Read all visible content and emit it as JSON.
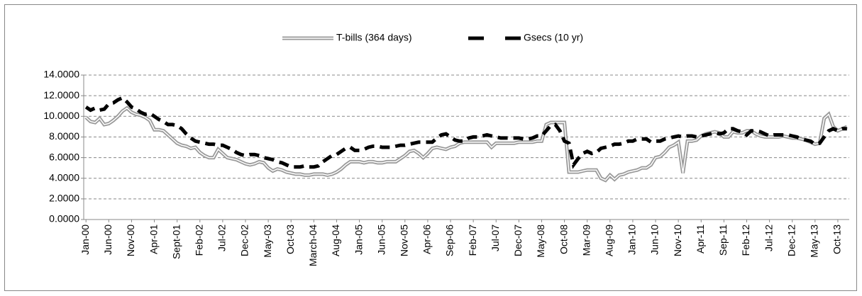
{
  "chart_data": {
    "type": "line",
    "categories": [
      "Jan-00",
      null,
      null,
      null,
      null,
      "Jun-00",
      null,
      null,
      null,
      null,
      "Nov-00",
      null,
      null,
      null,
      null,
      "Apr-01",
      null,
      null,
      null,
      null,
      "Sept-01",
      null,
      null,
      null,
      null,
      "Feb-02",
      null,
      null,
      null,
      null,
      "Jul-02",
      null,
      null,
      null,
      null,
      "Dec-02",
      null,
      null,
      null,
      null,
      "May-03",
      null,
      null,
      null,
      null,
      "Oct-03",
      null,
      null,
      null,
      null,
      "March-04",
      null,
      null,
      null,
      null,
      "Aug-04",
      null,
      null,
      null,
      null,
      "Jan-05",
      null,
      null,
      null,
      null,
      "Jun-05",
      null,
      null,
      null,
      null,
      "Nov-05",
      null,
      null,
      null,
      null,
      "Apr-06",
      null,
      null,
      null,
      null,
      "Sep-06",
      null,
      null,
      null,
      null,
      "Feb-07",
      null,
      null,
      null,
      null,
      "Jul-07",
      null,
      null,
      null,
      null,
      "Dec-07",
      null,
      null,
      null,
      null,
      "May-08",
      null,
      null,
      null,
      null,
      "Oct-08",
      null,
      null,
      null,
      null,
      "Mar-09",
      null,
      null,
      null,
      null,
      "Aug-09",
      null,
      null,
      null,
      null,
      "Jan-10",
      null,
      null,
      null,
      null,
      "Jun-10",
      null,
      null,
      null,
      null,
      "Nov-10",
      null,
      null,
      null,
      null,
      "Apr-11",
      null,
      null,
      null,
      null,
      "Sep-11",
      null,
      null,
      null,
      null,
      "Feb-12",
      null,
      null,
      null,
      null,
      "Jul-12",
      null,
      null,
      null,
      null,
      "Dec-12",
      null,
      null,
      null,
      null,
      "May-13",
      null,
      null,
      null,
      null,
      "Oct-13",
      null,
      null
    ],
    "series": [
      {
        "name": "T-bills (364 days)",
        "color": "#999999",
        "values": [
          9.9,
          9.5,
          9.4,
          9.8,
          9.2,
          9.3,
          9.6,
          10.0,
          10.5,
          10.8,
          10.4,
          10.2,
          10.1,
          9.9,
          9.6,
          8.7,
          8.7,
          8.6,
          8.2,
          7.8,
          7.4,
          7.2,
          7.1,
          6.9,
          7.0,
          6.5,
          6.2,
          6.0,
          6.0,
          6.8,
          6.4,
          6.0,
          5.9,
          5.8,
          5.6,
          5.4,
          5.3,
          5.4,
          5.6,
          5.5,
          5.0,
          4.7,
          4.9,
          4.8,
          4.6,
          4.5,
          4.4,
          4.4,
          4.3,
          4.3,
          4.4,
          4.4,
          4.4,
          4.3,
          4.4,
          4.6,
          4.9,
          5.3,
          5.6,
          5.6,
          5.6,
          5.5,
          5.6,
          5.6,
          5.5,
          5.5,
          5.6,
          5.6,
          5.6,
          5.9,
          6.2,
          6.6,
          6.7,
          6.4,
          6.0,
          6.4,
          6.9,
          7.0,
          6.9,
          6.8,
          7.0,
          7.1,
          7.4,
          7.5,
          7.5,
          7.5,
          7.5,
          7.5,
          7.5,
          7.0,
          7.4,
          7.4,
          7.4,
          7.4,
          7.4,
          7.5,
          7.5,
          7.5,
          7.5,
          7.6,
          7.6,
          9.2,
          9.4,
          9.4,
          9.4,
          9.4,
          4.6,
          4.6,
          4.6,
          4.7,
          4.8,
          4.8,
          4.8,
          4.0,
          3.8,
          4.3,
          3.9,
          4.3,
          4.4,
          4.6,
          4.7,
          4.8,
          5.0,
          5.0,
          5.3,
          6.0,
          6.1,
          6.5,
          7.0,
          7.2,
          7.5,
          4.5,
          7.6,
          7.6,
          7.7,
          8.1,
          8.3,
          8.4,
          8.5,
          8.4,
          8.0,
          8.0,
          8.5,
          8.4,
          8.4,
          8.6,
          8.6,
          8.3,
          8.1,
          8.0,
          8.0,
          8.0,
          8.0,
          8.1,
          8.0,
          7.9,
          7.9,
          7.8,
          7.7,
          7.5,
          7.3,
          7.4,
          9.8,
          10.2,
          9.0,
          8.6,
          8.8,
          9.0
        ]
      },
      {
        "name": "Gsecs (10 yr)",
        "color": "#000000",
        "values": [
          10.9,
          10.6,
          10.8,
          10.6,
          10.7,
          11.2,
          11.3,
          11.6,
          11.8,
          11.4,
          10.9,
          10.7,
          10.4,
          10.2,
          10.3,
          10.0,
          9.7,
          9.5,
          9.2,
          9.2,
          9.1,
          8.8,
          8.3,
          7.9,
          7.6,
          7.5,
          7.4,
          7.3,
          7.3,
          7.2,
          7.2,
          7.0,
          6.8,
          6.5,
          6.3,
          6.2,
          6.3,
          6.3,
          6.2,
          6.0,
          5.9,
          5.8,
          5.6,
          5.5,
          5.3,
          5.1,
          5.1,
          5.1,
          5.2,
          5.1,
          5.1,
          5.2,
          5.6,
          5.9,
          6.2,
          6.3,
          6.6,
          6.9,
          7.0,
          6.7,
          6.7,
          6.8,
          7.0,
          7.1,
          7.1,
          7.0,
          7.0,
          7.0,
          7.1,
          7.2,
          7.2,
          7.3,
          7.4,
          7.5,
          7.5,
          7.5,
          7.5,
          7.9,
          8.2,
          8.3,
          8.0,
          7.7,
          7.6,
          7.6,
          7.9,
          8.0,
          8.0,
          8.1,
          8.2,
          8.1,
          8.0,
          7.9,
          7.9,
          7.9,
          7.9,
          7.9,
          7.8,
          7.8,
          7.9,
          8.1,
          8.1,
          8.6,
          9.1,
          9.2,
          8.6,
          7.6,
          7.4,
          5.3,
          5.9,
          6.4,
          6.6,
          6.4,
          6.5,
          6.9,
          7.0,
          7.1,
          7.3,
          7.3,
          7.4,
          7.6,
          7.6,
          7.8,
          7.8,
          7.8,
          7.5,
          7.6,
          7.6,
          7.8,
          7.9,
          8.0,
          8.1,
          8.0,
          8.1,
          8.1,
          8.0,
          8.1,
          8.2,
          8.3,
          8.4,
          8.3,
          8.4,
          8.8,
          8.8,
          8.6,
          8.5,
          8.2,
          8.6,
          8.6,
          8.5,
          8.3,
          8.1,
          8.2,
          8.2,
          8.2,
          8.2,
          8.1,
          8.0,
          7.8,
          7.7,
          7.6,
          7.3,
          7.4,
          8.0,
          8.6,
          8.8,
          8.6,
          8.8,
          8.8
        ]
      }
    ],
    "ylim": [
      0,
      14
    ],
    "yticks": [
      {
        "value": 0,
        "label": "0.0000"
      },
      {
        "value": 2,
        "label": "2.0000"
      },
      {
        "value": 4,
        "label": "4.0000"
      },
      {
        "value": 6,
        "label": "6.0000"
      },
      {
        "value": 8,
        "label": "8.0000"
      },
      {
        "value": 10,
        "label": "10.0000"
      },
      {
        "value": 12,
        "label": "12.0000"
      },
      {
        "value": 14,
        "label": "14.0000"
      }
    ],
    "grid": true,
    "legend": "top"
  }
}
